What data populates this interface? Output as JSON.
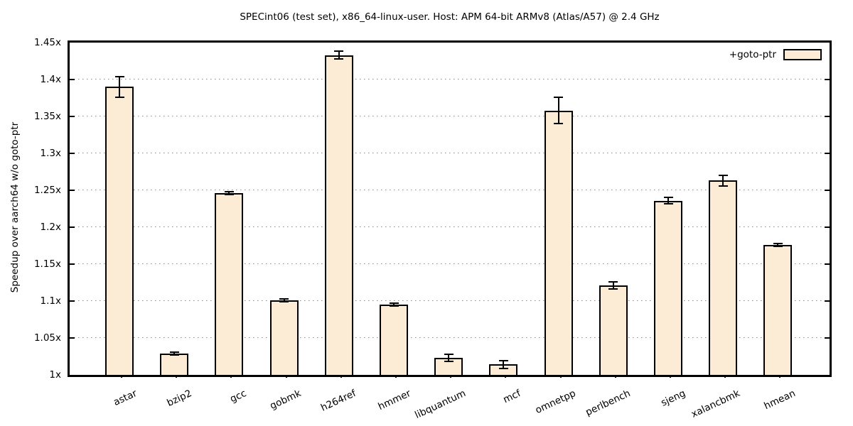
{
  "chart_data": {
    "type": "bar",
    "title": "SPECint06 (test set), x86_64-linux-user. Host: APM 64-bit ARMv8 (Atlas/A57) @ 2.4 GHz",
    "ylabel": "Speedup over aarch64 w/o goto-ptr",
    "xlabel": "",
    "categories": [
      "astar",
      "bzip2",
      "gcc",
      "gobmk",
      "h264ref",
      "hmmer",
      "libquantum",
      "mcf",
      "omnetpp",
      "perlbench",
      "sjeng",
      "xalancbmk",
      "hmean"
    ],
    "values": [
      1.39,
      1.029,
      1.246,
      1.101,
      1.433,
      1.095,
      1.023,
      1.014,
      1.358,
      1.121,
      1.236,
      1.263,
      1.176
    ],
    "errors": [
      0.014,
      0.002,
      0.002,
      0.002,
      0.005,
      0.002,
      0.005,
      0.005,
      0.018,
      0.005,
      0.004,
      0.007,
      0.002
    ],
    "ylim": [
      1.0,
      1.45
    ],
    "ytick_step": 0.05,
    "ytick_labels": [
      "1x",
      "1.05x",
      "1.1x",
      "1.15x",
      "1.2x",
      "1.25x",
      "1.3x",
      "1.35x",
      "1.4x",
      "1.45x"
    ],
    "grid": true,
    "legend_position": "top-right-inside",
    "legend_label": "+goto-ptr",
    "bar_fill": "#fcecd5",
    "bar_border": "#000000",
    "grid_color": "#8a8a8a"
  }
}
